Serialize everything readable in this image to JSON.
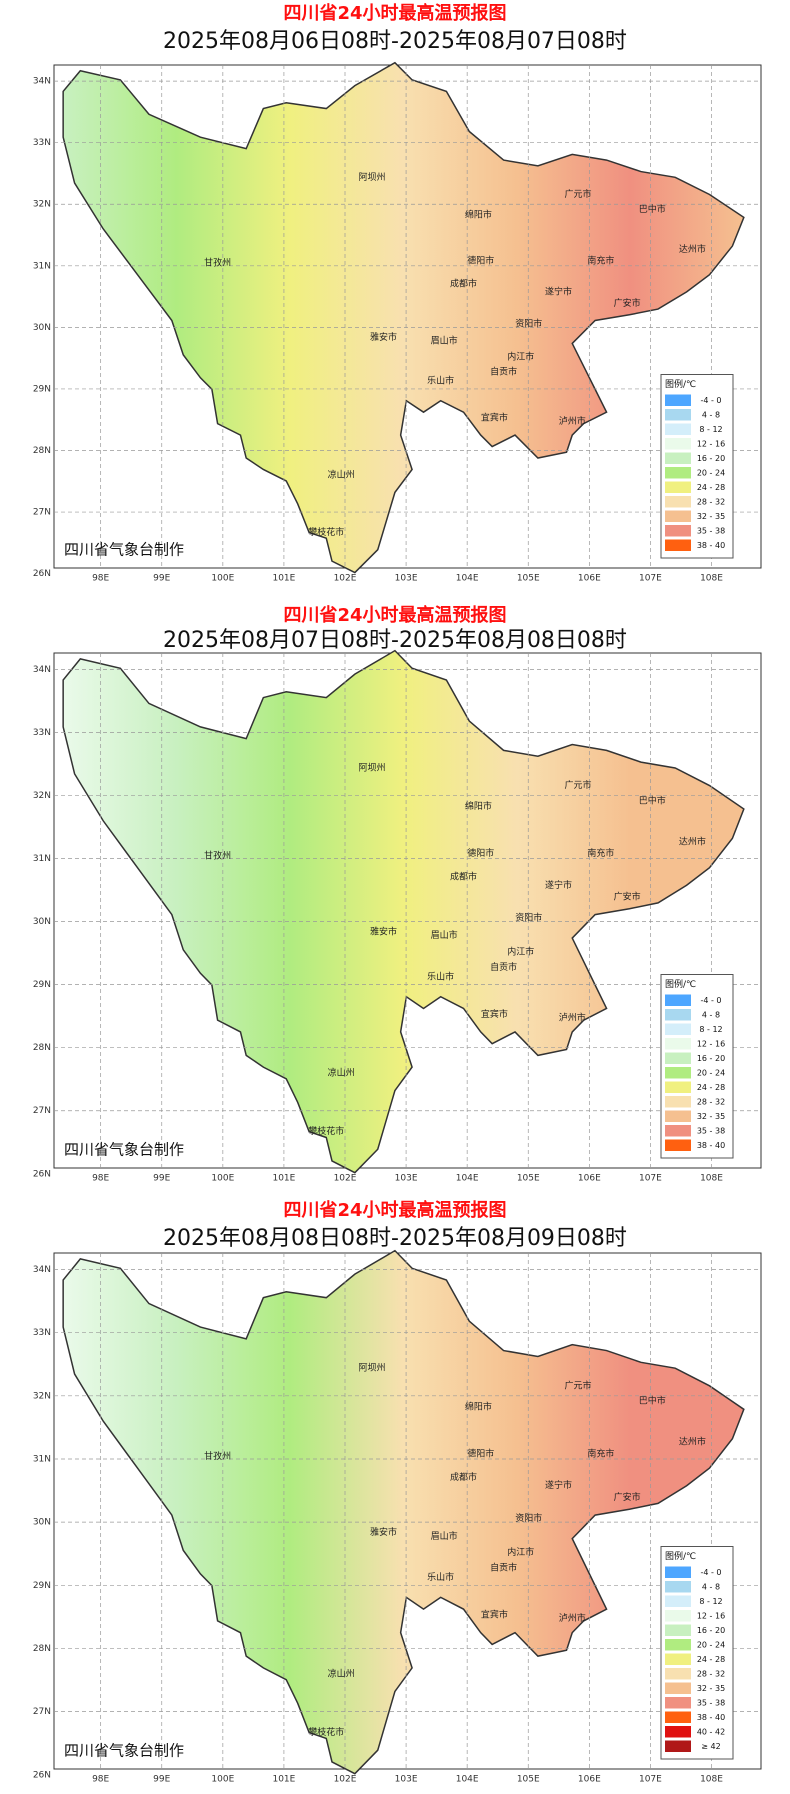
{
  "maps": [
    {
      "title": "四川省24小时最高温预报图",
      "subtitle": "2025年08月06日08时-2025年08月07日08时",
      "lat_labels": [
        "34N",
        "33N",
        "32N",
        "31N",
        "30N",
        "29N",
        "28N",
        "27N",
        "26N"
      ],
      "lon_labels": [
        "98E",
        "99E",
        "100E",
        "101E",
        "102E",
        "103E",
        "104E",
        "105E",
        "106E",
        "107E",
        "108E"
      ],
      "cities": [
        "阿坝州",
        "甘孜州",
        "凉山州",
        "攀枝花市",
        "雅安市",
        "成都市",
        "德阳市",
        "绵阳市",
        "广元市",
        "巴中市",
        "达州市",
        "南充市",
        "遂宁市",
        "广安市",
        "资阳市",
        "眉山市",
        "乐山市",
        "内江市",
        "自贡市",
        "宜宾市",
        "泸州市"
      ],
      "credit": "四川省气象台制作",
      "legend_title": "图例/℃",
      "legend": [
        {
          "label": "-4 - 0",
          "color": "#4da6ff"
        },
        {
          "label": "4 - 8",
          "color": "#a8d8f0"
        },
        {
          "label": "8 - 12",
          "color": "#d4eefa"
        },
        {
          "label": "12 - 16",
          "color": "#eafaea"
        },
        {
          "label": "16 - 20",
          "color": "#c8f0c0"
        },
        {
          "label": "20 - 24",
          "color": "#b0ec80"
        },
        {
          "label": "24 - 28",
          "color": "#f0f080"
        },
        {
          "label": "28 - 32",
          "color": "#f8e0b0"
        },
        {
          "label": "32 - 35",
          "color": "#f5c090"
        },
        {
          "label": "35 - 38",
          "color": "#f09080"
        },
        {
          "label": "38 - 40",
          "color": "#ff6010"
        }
      ]
    },
    {
      "title": "四川省24小时最高温预报图",
      "subtitle": "2025年08月07日08时-2025年08月08日08时",
      "lat_labels": [
        "34N",
        "33N",
        "32N",
        "31N",
        "30N",
        "29N",
        "28N",
        "27N",
        "26N"
      ],
      "lon_labels": [
        "98E",
        "99E",
        "100E",
        "101E",
        "102E",
        "103E",
        "104E",
        "105E",
        "106E",
        "107E",
        "108E"
      ],
      "cities": [
        "阿坝州",
        "甘孜州",
        "凉山州",
        "攀枝花市",
        "雅安市",
        "成都市",
        "德阳市",
        "绵阳市",
        "广元市",
        "巴中市",
        "达州市",
        "南充市",
        "遂宁市",
        "广安市",
        "资阳市",
        "眉山市",
        "乐山市",
        "内江市",
        "自贡市",
        "宜宾市",
        "泸州市"
      ],
      "credit": "四川省气象台制作",
      "legend_title": "图例/℃",
      "legend": [
        {
          "label": "-4 - 0",
          "color": "#4da6ff"
        },
        {
          "label": "4 - 8",
          "color": "#a8d8f0"
        },
        {
          "label": "8 - 12",
          "color": "#d4eefa"
        },
        {
          "label": "12 - 16",
          "color": "#eafaea"
        },
        {
          "label": "16 - 20",
          "color": "#c8f0c0"
        },
        {
          "label": "20 - 24",
          "color": "#b0ec80"
        },
        {
          "label": "24 - 28",
          "color": "#f0f080"
        },
        {
          "label": "28 - 32",
          "color": "#f8e0b0"
        },
        {
          "label": "32 - 35",
          "color": "#f5c090"
        },
        {
          "label": "35 - 38",
          "color": "#f09080"
        },
        {
          "label": "38 - 40",
          "color": "#ff6010"
        }
      ]
    },
    {
      "title": "四川省24小时最高温预报图",
      "subtitle": "2025年08月08日08时-2025年08月09日08时",
      "lat_labels": [
        "34N",
        "33N",
        "32N",
        "31N",
        "30N",
        "29N",
        "28N",
        "27N",
        "26N"
      ],
      "lon_labels": [
        "98E",
        "99E",
        "100E",
        "101E",
        "102E",
        "103E",
        "104E",
        "105E",
        "106E",
        "107E",
        "108E"
      ],
      "cities": [
        "阿坝州",
        "甘孜州",
        "凉山州",
        "攀枝花市",
        "雅安市",
        "成都市",
        "德阳市",
        "绵阳市",
        "广元市",
        "巴中市",
        "达州市",
        "南充市",
        "遂宁市",
        "广安市",
        "资阳市",
        "眉山市",
        "乐山市",
        "内江市",
        "自贡市",
        "宜宾市",
        "泸州市"
      ],
      "credit": "四川省气象台制作",
      "legend_title": "图例/℃",
      "legend": [
        {
          "label": "-4 - 0",
          "color": "#4da6ff"
        },
        {
          "label": "4 - 8",
          "color": "#a8d8f0"
        },
        {
          "label": "8 - 12",
          "color": "#d4eefa"
        },
        {
          "label": "12 - 16",
          "color": "#eafaea"
        },
        {
          "label": "16 - 20",
          "color": "#c8f0c0"
        },
        {
          "label": "20 - 24",
          "color": "#b0ec80"
        },
        {
          "label": "24 - 28",
          "color": "#f0f080"
        },
        {
          "label": "28 - 32",
          "color": "#f8e0b0"
        },
        {
          "label": "32 - 35",
          "color": "#f5c090"
        },
        {
          "label": "35 - 38",
          "color": "#f09080"
        },
        {
          "label": "38 - 40",
          "color": "#ff6010"
        },
        {
          "label": "40 - 42",
          "color": "#e01010"
        },
        {
          "label": "≥ 42",
          "color": "#b01818"
        }
      ]
    }
  ]
}
